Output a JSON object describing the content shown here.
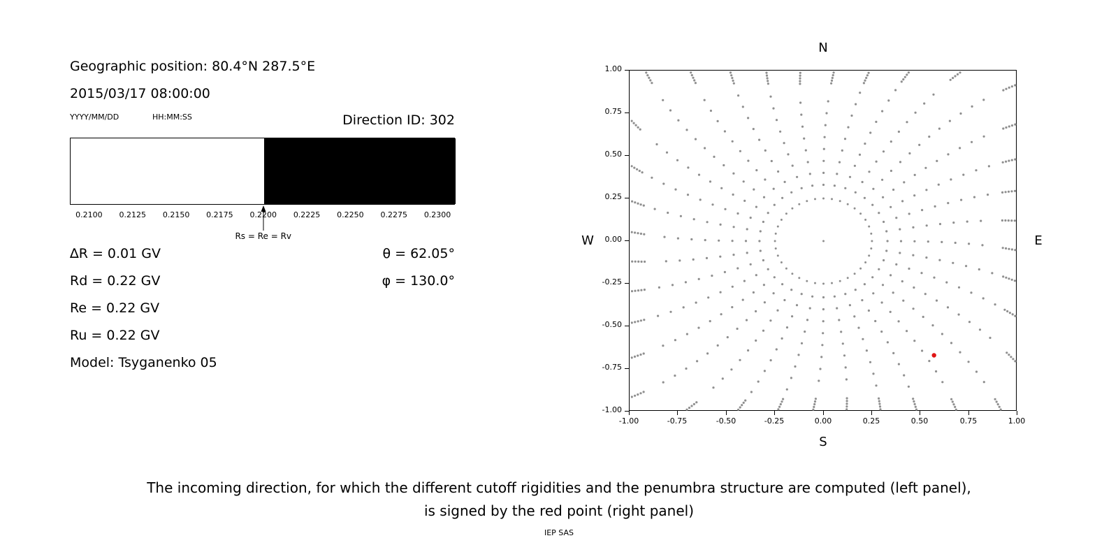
{
  "left_panel": {
    "geo_position": "Geographic position: 80.4°N 287.5°E",
    "datetime": "2015/03/17 08:00:00",
    "date_format_label": "YYYY/MM/DD",
    "time_format_label": "HH:MM:SS",
    "direction_id": "Direction ID: 302",
    "params": [
      "∆R = 0.01 GV",
      "Rd = 0.22 GV",
      "Re = 0.22 GV",
      "Ru = 0.22 GV",
      "Model: Tsyganenko 05"
    ],
    "theta": "θ = 62.05°",
    "phi": "φ = 130.0°"
  },
  "caption": {
    "line1": "The incoming direction, for which the different cutoff rigidities and the penumbra structure are computed (left panel),",
    "line2": "is signed by the red point (right panel)"
  },
  "footer": "IEP SAS",
  "chart_data": [
    {
      "type": "area",
      "name": "penumbra-structure",
      "xlim": [
        0.2089,
        0.231
      ],
      "ticks": [
        0.21,
        0.2125,
        0.215,
        0.2175,
        0.22,
        0.2225,
        0.225,
        0.2275,
        0.23
      ],
      "tick_labels": [
        "0.2100",
        "0.2125",
        "0.2150",
        "0.2175",
        "0.2200",
        "0.2225",
        "0.2250",
        "0.2275",
        "0.2300"
      ],
      "regions": [
        {
          "from": 0.2089,
          "to": 0.22,
          "color": "#ffffff",
          "meaning": "allowed rigidities"
        },
        {
          "from": 0.22,
          "to": 0.231,
          "color": "#000000",
          "meaning": "forbidden rigidities"
        }
      ],
      "marker": {
        "x": 0.22,
        "label": "Rs = Re = Rv"
      }
    },
    {
      "type": "scatter",
      "name": "incoming-direction-map",
      "xlim": [
        -1,
        1
      ],
      "ylim": [
        -1,
        1
      ],
      "xticks": [
        -1,
        -0.75,
        -0.5,
        -0.25,
        0,
        0.25,
        0.5,
        0.75,
        1
      ],
      "yticks": [
        1,
        0.75,
        0.5,
        0.25,
        0,
        -0.25,
        -0.5,
        -0.75,
        -1
      ],
      "xtick_labels": [
        "-1.00",
        "-0.75",
        "-0.50",
        "-0.25",
        "0.00",
        "0.25",
        "0.50",
        "0.75",
        "1.00"
      ],
      "ytick_labels": [
        "1.00",
        "0.75",
        "0.50",
        "0.25",
        "0.00",
        "-0.25",
        "-0.50",
        "-0.75",
        "-1.00"
      ],
      "compass": {
        "top": "N",
        "bottom": "S",
        "left": "W",
        "right": "E"
      },
      "dot_color": "#8f8f8f",
      "red_point": {
        "x": 0.57,
        "y": -0.67,
        "color": "#e01515"
      },
      "pattern": {
        "spoke_count": 36,
        "spoke_step_deg": 10,
        "r_start": 0.33,
        "r_step": 0.07,
        "curve_deg_per_r2": 7,
        "edge": 0.99,
        "clump_count": 5,
        "clump_step": 0.016,
        "ring_radius": 0.25,
        "ring_count": 36,
        "center_dot": true
      }
    }
  ]
}
